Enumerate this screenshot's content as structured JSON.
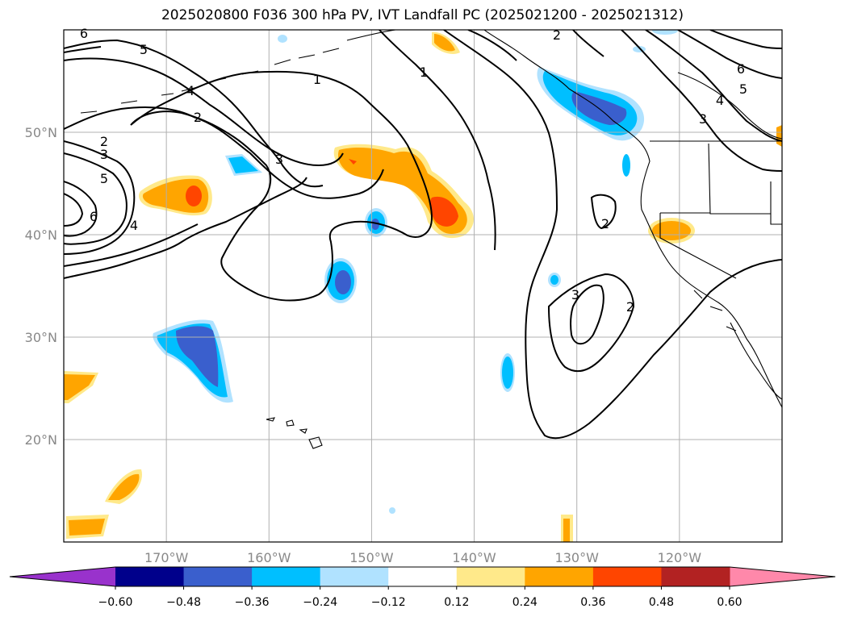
{
  "title": "2025020800 F036 300 hPa PV, IVT Landfall PC (2025021200 - 2025021312)",
  "map": {
    "projection": "PlateCarree",
    "extent_lon": [
      -180,
      -110
    ],
    "extent_lat": [
      10,
      60
    ],
    "lon_ticks": [
      {
        "value": -170,
        "label": "170°W"
      },
      {
        "value": -160,
        "label": "160°W"
      },
      {
        "value": -150,
        "label": "150°W"
      },
      {
        "value": -140,
        "label": "140°W"
      },
      {
        "value": -130,
        "label": "130°W"
      },
      {
        "value": -120,
        "label": "120°W"
      }
    ],
    "lat_ticks": [
      {
        "value": 50,
        "label": "50°N"
      },
      {
        "value": 40,
        "label": "40°N"
      },
      {
        "value": 30,
        "label": "30°N"
      },
      {
        "value": 20,
        "label": "20°N"
      }
    ],
    "grid": true,
    "colors": {
      "gridline": "#b0b0b0",
      "tick_label": "#888888",
      "contour": "#000000"
    }
  },
  "colorbar": {
    "orientation": "horizontal",
    "extend": "both",
    "boundaries": [
      -0.6,
      -0.48,
      -0.36,
      -0.24,
      -0.12,
      0.12,
      0.24,
      0.36,
      0.48,
      0.6
    ],
    "labels": [
      "−0.60",
      "−0.48",
      "−0.36",
      "−0.24",
      "−0.12",
      "0.12",
      "0.24",
      "0.36",
      "0.48",
      "0.60"
    ],
    "colors": [
      "#9932cc",
      "#00008b",
      "#3a5fcd",
      "#00bfff",
      "#b0e2ff",
      "#ffffff",
      "#ffe98a",
      "#ffa500",
      "#ff4500",
      "#b22222",
      "#ff88aa"
    ]
  },
  "contours": {
    "field": "300 hPa PV",
    "labels": [
      "1",
      "2",
      "3",
      "4",
      "5",
      "6"
    ]
  },
  "shaded_regions": [
    {
      "id": "hawaii-south-low",
      "value": -0.48,
      "center": [
        -166,
        28
      ]
    },
    {
      "id": "east-pacific-low",
      "value": -0.48,
      "center": [
        -152.5,
        36
      ]
    },
    {
      "id": "mid-pacific-low",
      "value": -0.36,
      "center": [
        -149,
        41
      ]
    },
    {
      "id": "bc-coast-low",
      "value": -0.48,
      "center": [
        -127.5,
        52.5
      ]
    },
    {
      "id": "dateline-high",
      "value": 0.36,
      "center": [
        -167,
        43.5
      ]
    },
    {
      "id": "ne-pacific-high",
      "value": 0.36,
      "center": [
        -142.5,
        42
      ]
    },
    {
      "id": "california-high",
      "value": 0.24,
      "center": [
        -120,
        40.4
      ]
    },
    {
      "id": "southwest-high",
      "value": 0.24,
      "center": [
        -175,
        15
      ]
    }
  ]
}
